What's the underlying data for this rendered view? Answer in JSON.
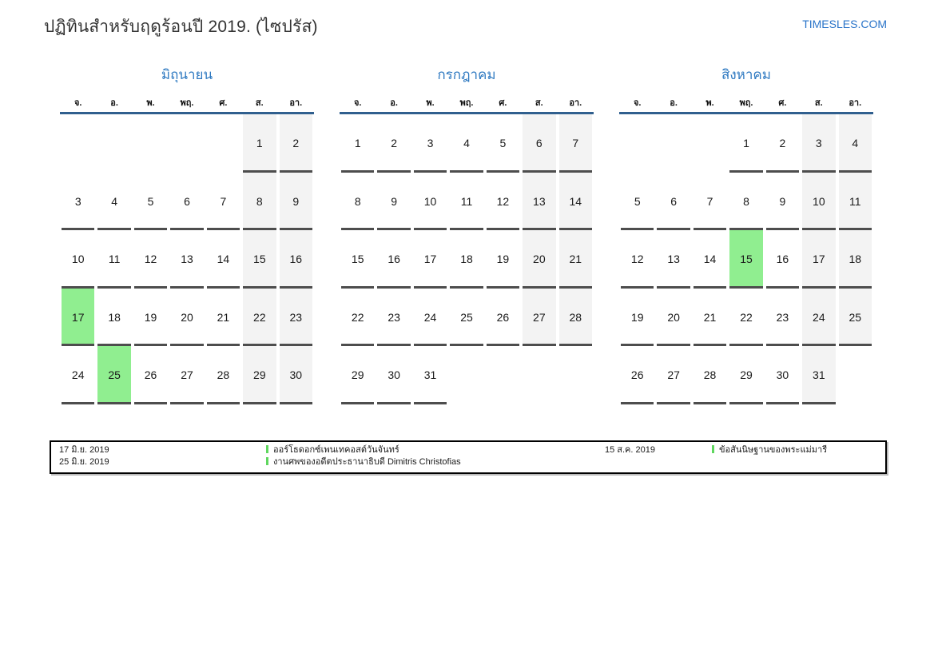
{
  "page": {
    "title": "ปฏิทินสำหรับฤดูร้อนปี 2019. (ไซปรัส)",
    "brand": "TIMESLES.COM"
  },
  "colors": {
    "accent_blue": "#2e79c1",
    "header_rule_blue": "#305f8e",
    "weekend_bg": "#f3f3f3",
    "highlight_green": "#90ee90",
    "legend_marker_green": "#5fd75f",
    "cell_underline_gray": "#4d4d4d"
  },
  "weekdays": [
    "จ.",
    "อ.",
    "พ.",
    "พฤ.",
    "ศ.",
    "ส.",
    "อา."
  ],
  "months": [
    {
      "name": "มิถุนายน",
      "weeks": [
        [
          "",
          "",
          "",
          "",
          "",
          "1",
          "2"
        ],
        [
          "3",
          "4",
          "5",
          "6",
          "7",
          "8",
          "9"
        ],
        [
          "10",
          "11",
          "12",
          "13",
          "14",
          "15",
          "16"
        ],
        [
          "17",
          "18",
          "19",
          "20",
          "21",
          "22",
          "23"
        ],
        [
          "24",
          "25",
          "26",
          "27",
          "28",
          "29",
          "30"
        ]
      ],
      "highlighted": [
        "17",
        "25"
      ]
    },
    {
      "name": "กรกฎาคม",
      "weeks": [
        [
          "1",
          "2",
          "3",
          "4",
          "5",
          "6",
          "7"
        ],
        [
          "8",
          "9",
          "10",
          "11",
          "12",
          "13",
          "14"
        ],
        [
          "15",
          "16",
          "17",
          "18",
          "19",
          "20",
          "21"
        ],
        [
          "22",
          "23",
          "24",
          "25",
          "26",
          "27",
          "28"
        ],
        [
          "29",
          "30",
          "31",
          "",
          "",
          "",
          ""
        ]
      ],
      "highlighted": []
    },
    {
      "name": "สิงหาคม",
      "weeks": [
        [
          "",
          "",
          "",
          "1",
          "2",
          "3",
          "4"
        ],
        [
          "5",
          "6",
          "7",
          "8",
          "9",
          "10",
          "11"
        ],
        [
          "12",
          "13",
          "14",
          "15",
          "16",
          "17",
          "18"
        ],
        [
          "19",
          "20",
          "21",
          "22",
          "23",
          "24",
          "25"
        ],
        [
          "26",
          "27",
          "28",
          "29",
          "30",
          "31",
          ""
        ]
      ],
      "highlighted": [
        "15"
      ]
    }
  ],
  "legend": {
    "events": [
      {
        "date": "17 มิ.ย. 2019",
        "title": "ออร์โธดอกซ์เพนเทคอสต์วันจันทร์"
      },
      {
        "date": "25 มิ.ย. 2019",
        "title": "งานศพของอดีตประธานาธิบดี Dimitris Christofias"
      },
      {
        "date": "15 ส.ค. 2019",
        "title": "ข้อสันนิษฐานของพระแม่มารี"
      }
    ]
  }
}
